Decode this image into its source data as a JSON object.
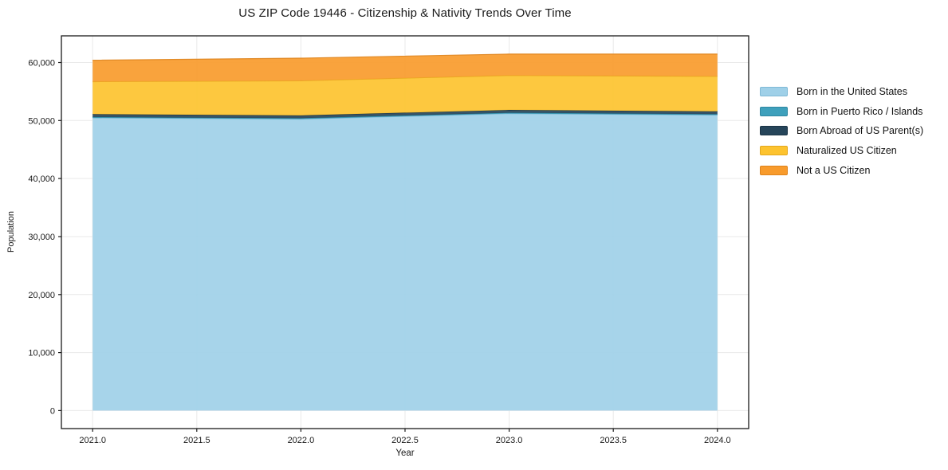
{
  "chart_data": {
    "type": "area",
    "stacked": true,
    "title": "US ZIP Code 19446 - Citizenship & Nativity Trends Over Time",
    "xlabel": "Year",
    "ylabel": "Population",
    "x": [
      2021,
      2022,
      2023,
      2024
    ],
    "series": [
      {
        "name": "Born in the United States",
        "color": "#9FD0E8",
        "edge": "#7FB9D6",
        "values": [
          50450,
          50250,
          51200,
          50950
        ]
      },
      {
        "name": "Born in Puerto Rico / Islands",
        "color": "#3EA0BC",
        "edge": "#2E87A1",
        "values": [
          150,
          150,
          150,
          150
        ]
      },
      {
        "name": "Born Abroad of US Parent(s)",
        "color": "#26455A",
        "edge": "#1B3344",
        "values": [
          500,
          480,
          480,
          480
        ]
      },
      {
        "name": "Naturalized US Citizen",
        "color": "#FDC32F",
        "edge": "#E3A81D",
        "values": [
          5600,
          5970,
          5950,
          6050
        ]
      },
      {
        "name": "Not a US Citizen",
        "color": "#F89B2C",
        "edge": "#DE831C",
        "values": [
          3700,
          3900,
          3670,
          3820
        ]
      }
    ],
    "xlim": [
      2020.85,
      2024.15
    ],
    "ylim": [
      -3100,
      64600
    ],
    "x_ticks": [
      2021.0,
      2021.5,
      2022.0,
      2022.5,
      2023.0,
      2023.5,
      2024.0
    ],
    "y_ticks": [
      0,
      10000,
      20000,
      30000,
      40000,
      50000,
      60000
    ],
    "grid": true,
    "grid_color": "#e9e9e9",
    "frame_color": "#1a1a1a",
    "tick_label_color": "#1a1a1a",
    "legend_position": "right"
  }
}
